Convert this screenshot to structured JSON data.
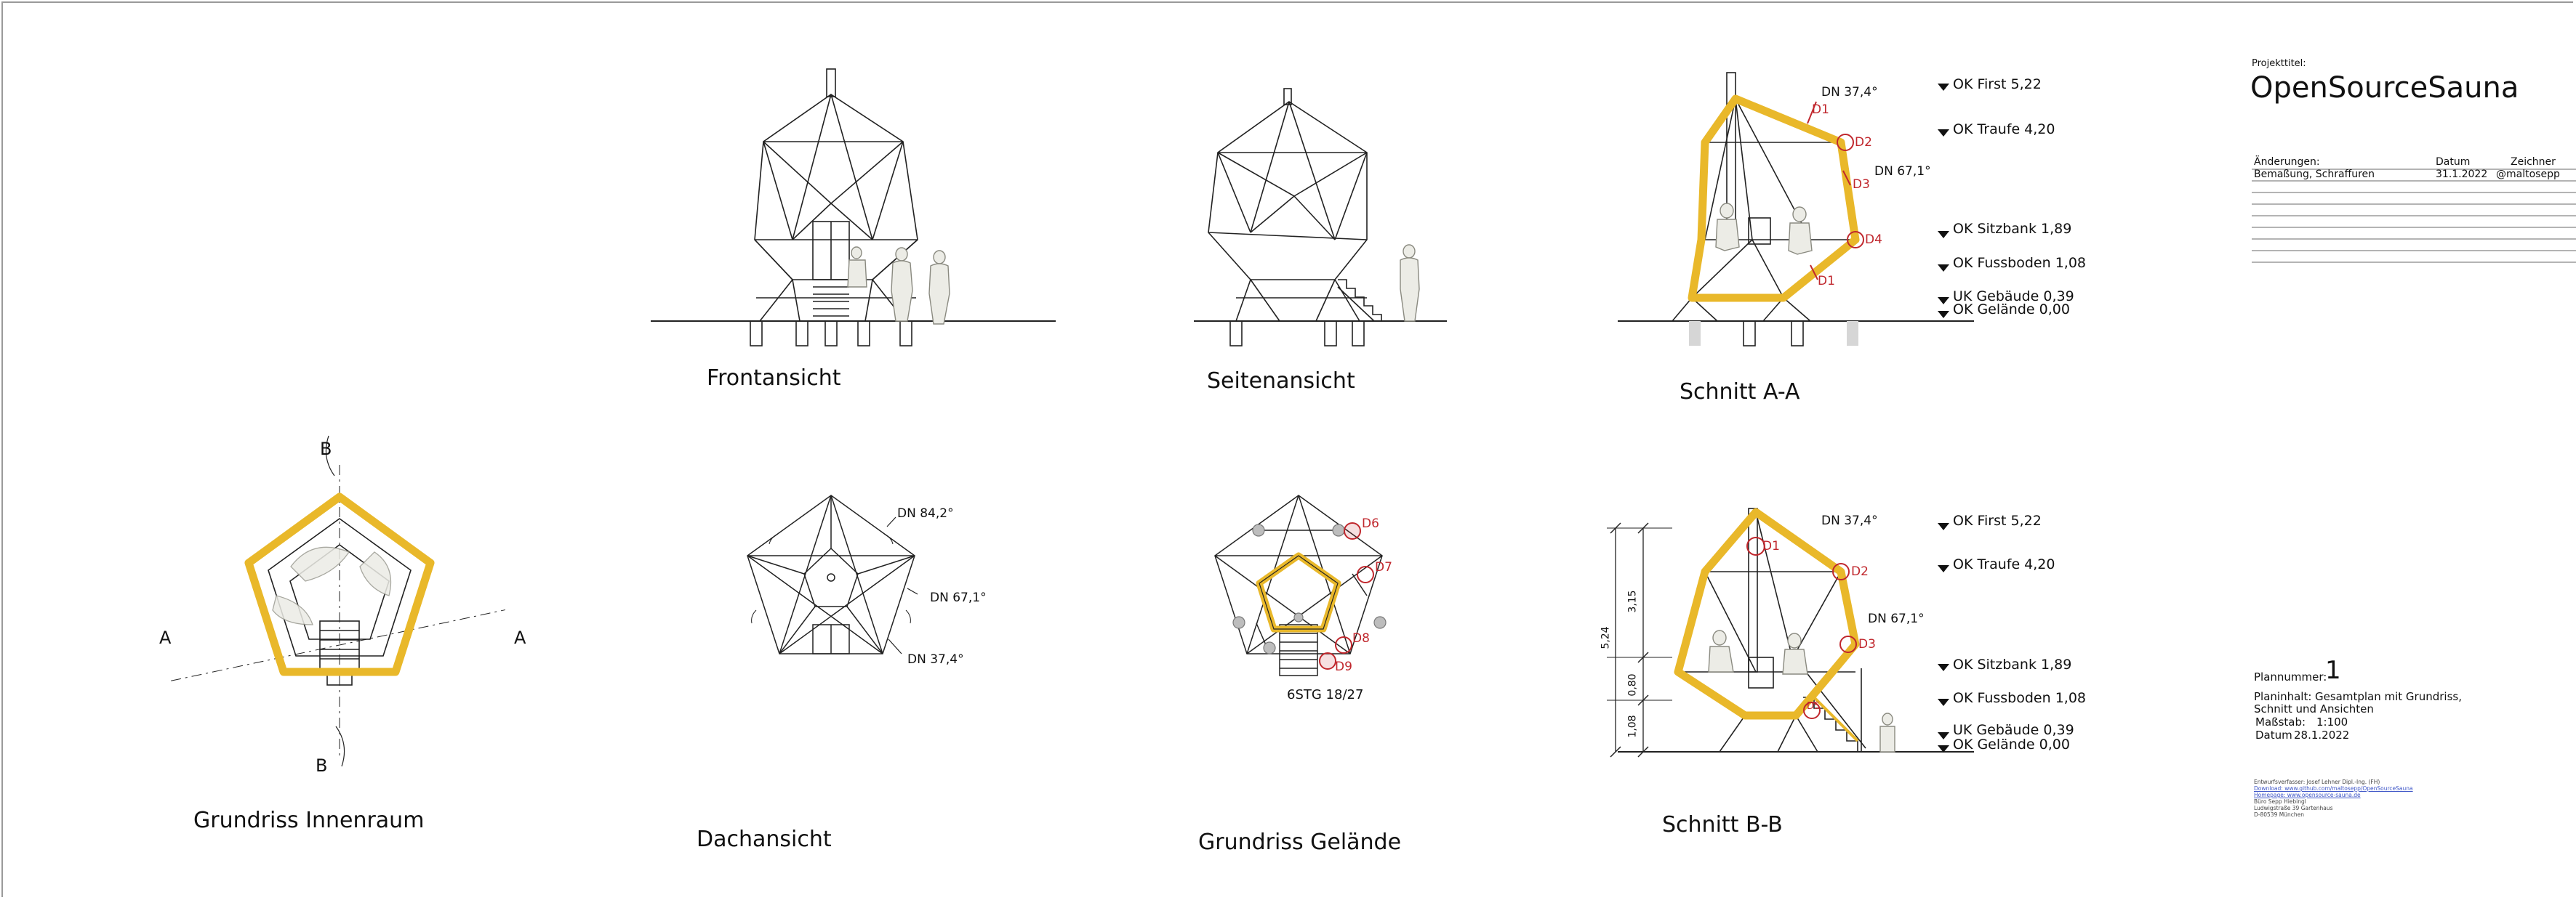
{
  "project": {
    "label": "Projekttitel:",
    "title": "OpenSourceSauna"
  },
  "changes": {
    "header_changes": "Änderungen:",
    "header_date": "Datum",
    "header_author": "Zeichner",
    "rows": [
      {
        "change": "Bemaßung, Schraffuren",
        "date": "31.1.2022",
        "author": "@maltosepp"
      }
    ]
  },
  "plan": {
    "number_label": "Plannummer:",
    "number": "1",
    "content_label": "Planinhalt:",
    "content_line1": "Gesamtplan mit Grundriss,",
    "content_line2": "Schnitt und Ansichten",
    "scale_label": "Maßstab:",
    "scale": "1:100",
    "date_label": "Datum",
    "date": "28.1.2022"
  },
  "credits": {
    "line1": "Entwurfsverfasser: Josef Lehner Dipl.-Ing. (FH)",
    "line2": "Download: www.github.com/maltosepp/OpenSourceSauna",
    "line3": "Homepage: www.opensource-sauna.de",
    "line4": "Büro Sepp Hiebingl",
    "line5": "Ludwigstraße 39 Gartenhaus",
    "line6": "D-80539 München"
  },
  "views": {
    "front": "Frontansicht",
    "side": "Seitenansicht",
    "section_aa": "Schnitt A-A",
    "floor_interior": "Grundriss Innenraum",
    "roof": "Dachansicht",
    "floor_site": "Grundriss Gelände",
    "section_bb": "Schnitt B-B"
  },
  "levels": {
    "first": "OK First 5,22",
    "traufe": "OK Traufe 4,20",
    "sitzbank": "OK Sitzbank 1,89",
    "fussboden": "OK Fussboden 1,08",
    "uk_gebaeude": "UK Gebäude 0,39",
    "gelaende": "OK Gelände 0,00"
  },
  "roof_pitches": {
    "dn1": "DN 37,4°",
    "dn2": "DN 67,1°",
    "dn3": "DN 84,2°"
  },
  "details": {
    "d1": "D1",
    "d2": "D2",
    "d3": "D3",
    "d4": "D4",
    "d6": "D6",
    "d7": "D7",
    "d8": "D8",
    "d9": "D9",
    "d1_sub": "D1",
    "d3_sub": "D3",
    "d5_sub": "D5"
  },
  "section_marks": {
    "a": "A",
    "b": "B"
  },
  "stairs": "6STG 18/27",
  "dimensions": {
    "total": "5,24",
    "upper": "3,15",
    "mid": "0,80",
    "lower": "1,08"
  },
  "colors": {
    "insulation": "#e9b82a",
    "detail_marker": "#c0272d",
    "line": "#222222",
    "figure": "#8a8a80"
  }
}
